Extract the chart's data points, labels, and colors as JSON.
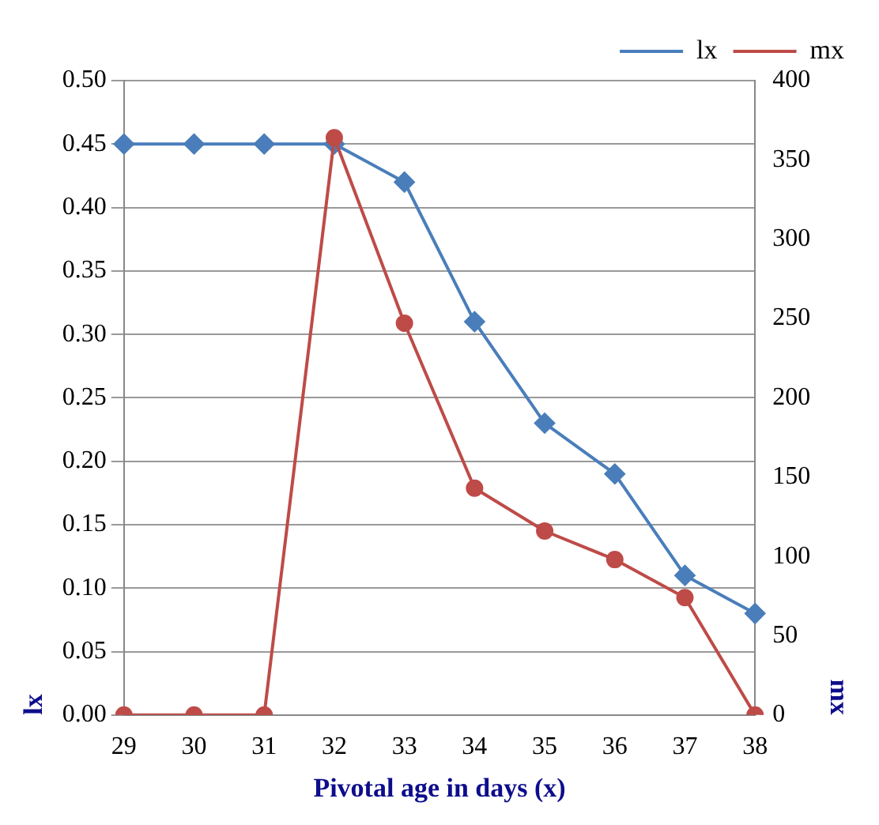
{
  "chart_data": {
    "type": "line",
    "xlabel": "Pivotal age in days (x)",
    "ylabel": "lx",
    "y2label": "mx",
    "categories": [
      "29",
      "30",
      "31",
      "32",
      "33",
      "34",
      "35",
      "36",
      "37",
      "38"
    ],
    "series": [
      {
        "name": "lx",
        "color": "#4a7ebb",
        "marker": "diamond",
        "values": [
          0.45,
          0.45,
          0.45,
          0.45,
          0.42,
          0.31,
          0.23,
          0.19,
          0.11,
          0.08
        ]
      },
      {
        "name": "mx",
        "color": "#be4b48",
        "marker": "circle",
        "axis": "y2",
        "values": [
          0,
          0,
          0,
          364,
          247,
          143,
          116,
          98,
          74,
          0
        ]
      }
    ],
    "ylim": [
      0,
      0.5
    ],
    "yticks": [
      {
        "value": 0,
        "label": "0.00"
      },
      0.05,
      {
        "value": 0.1,
        "label": "0.10"
      },
      0.15,
      {
        "value": 0.2,
        "label": "0.20"
      },
      0.25,
      {
        "value": 0.3,
        "label": "0.30"
      },
      0.35,
      {
        "value": 0.4,
        "label": "0.40"
      },
      0.45,
      {
        "value": 0.5,
        "label": "0.50"
      }
    ],
    "y2lim": [
      0,
      400
    ],
    "y2ticks": [
      0,
      50,
      100,
      150,
      200,
      250,
      300,
      350,
      400
    ],
    "grid": "y",
    "legend": "top right",
    "line_style": "solid"
  }
}
